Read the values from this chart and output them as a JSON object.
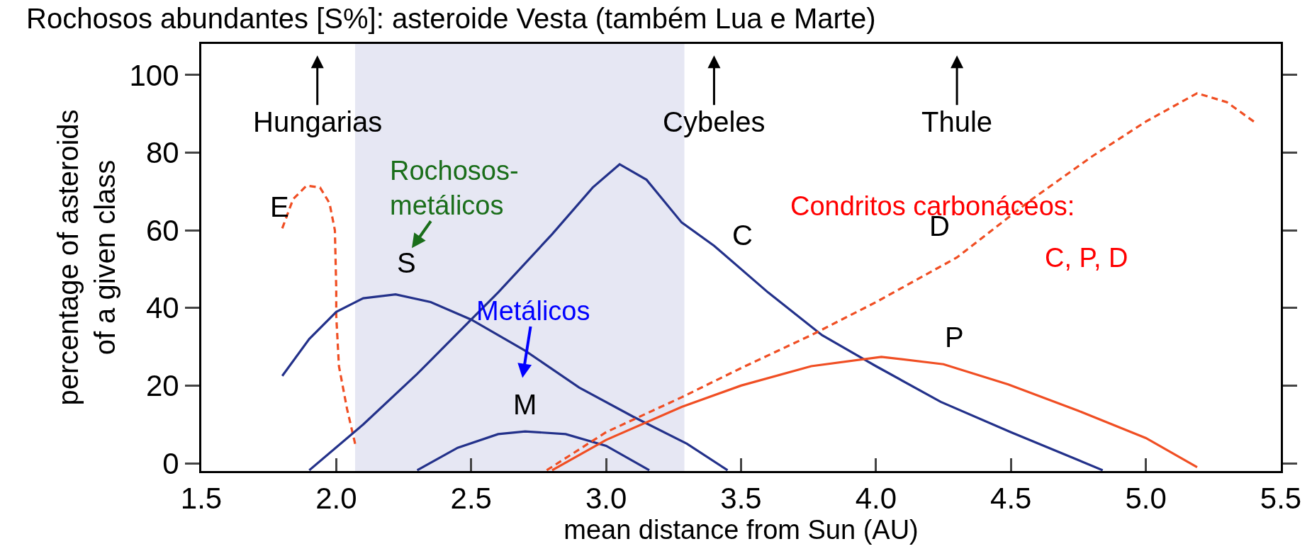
{
  "chart_data": {
    "type": "line",
    "title": "Rochosos abundantes [S%]: asteroide Vesta (também Lua e Marte)",
    "xlabel": "mean distance from Sun (AU)",
    "ylabel": "percentage of asteroids\nof a given class",
    "xlim": [
      1.5,
      5.5
    ],
    "xticks": [
      {
        "value": 1.5,
        "label": "1.5"
      },
      {
        "value": 2.0,
        "label": "2.0"
      },
      {
        "value": 2.5,
        "label": "2.5"
      },
      {
        "value": 3.0,
        "label": "3.0"
      },
      {
        "value": 3.5,
        "label": "3.5"
      },
      {
        "value": 4.0,
        "label": "4.0"
      },
      {
        "value": 4.5,
        "label": "4.5"
      },
      {
        "value": 5.0,
        "label": "5.0"
      },
      {
        "value": 5.5,
        "label": "5.5"
      }
    ],
    "ylim": [
      -2,
      108
    ],
    "yticks": [
      0,
      20,
      40,
      60,
      80,
      100
    ],
    "legend": false,
    "grid": false,
    "marker": "none",
    "bands": [
      {
        "axis": "x",
        "from": 2.07,
        "to": 3.29,
        "color": "#e6e7f3"
      }
    ],
    "series": [
      {
        "name": "E",
        "color": "#f04e23",
        "line_style": "dashed",
        "x": [
          1.8,
          1.84,
          1.89,
          1.94,
          1.975,
          1.995,
          2.0,
          2.0,
          2.01,
          2.04,
          2.07
        ],
        "values": [
          60.5,
          68,
          71.5,
          71,
          67,
          60,
          45,
          38,
          25,
          14,
          5
        ]
      },
      {
        "name": "S",
        "color": "#23318a",
        "line_style": "solid",
        "x": [
          1.8,
          1.9,
          2.0,
          2.1,
          2.22,
          2.35,
          2.5,
          2.7,
          2.9,
          3.1,
          3.3,
          3.45
        ],
        "values": [
          22.5,
          32,
          39,
          42.5,
          43.5,
          41.5,
          37,
          29,
          19.5,
          12,
          5,
          -1.8
        ]
      },
      {
        "name": "M",
        "color": "#23318a",
        "line_style": "solid",
        "x": [
          2.3,
          2.45,
          2.6,
          2.7,
          2.85,
          3.0,
          3.16
        ],
        "values": [
          -1.8,
          4,
          7.5,
          8.2,
          7.5,
          4.5,
          -1.8
        ]
      },
      {
        "name": "C",
        "color": "#23318a",
        "line_style": "solid",
        "x": [
          1.9,
          2.1,
          2.3,
          2.5,
          2.6,
          2.8,
          2.95,
          3.05,
          3.15,
          3.28,
          3.4,
          3.6,
          3.8,
          4.0,
          4.24,
          4.5,
          4.84
        ],
        "values": [
          -1.8,
          10,
          23,
          37,
          44,
          59,
          71,
          77,
          73,
          62,
          56,
          44,
          33,
          25,
          15.8,
          8,
          -1.8
        ]
      },
      {
        "name": "P",
        "color": "#f04e23",
        "line_style": "solid",
        "x": [
          2.8,
          3.0,
          3.28,
          3.5,
          3.76,
          4.02,
          4.25,
          4.49,
          4.75,
          5.0,
          5.19
        ],
        "values": [
          -1.8,
          6,
          14.5,
          20,
          25,
          27.4,
          25.5,
          20.3,
          13.5,
          6.5,
          -1
        ]
      },
      {
        "name": "D",
        "color": "#f04e23",
        "line_style": "dashed",
        "x": [
          2.78,
          3.0,
          3.28,
          3.5,
          3.76,
          4.0,
          4.3,
          4.57,
          4.8,
          5.0,
          5.19,
          5.3,
          5.4
        ],
        "values": [
          -1.8,
          8,
          17,
          24.5,
          33,
          41.5,
          53,
          67.6,
          79,
          88,
          95.3,
          93,
          88
        ]
      }
    ],
    "annotations": [
      "Hungarias",
      "Cybeles",
      "Thule",
      "Rochosos-\nmetálicos",
      "Metálicos",
      "Condritos carbonáceos:",
      "C, P, D"
    ]
  }
}
